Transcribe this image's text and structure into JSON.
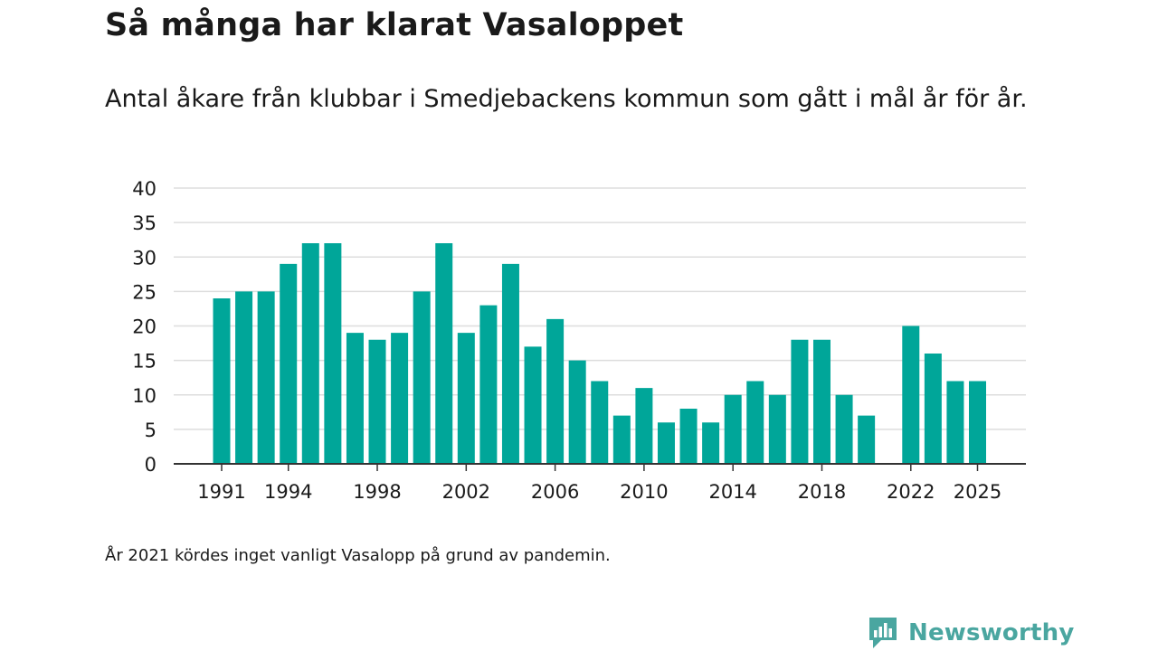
{
  "title": "Så många har klarat Vasaloppet",
  "subtitle": "Antal åkare från klubbar i Smedjebackens kommun som gått i mål år för år.",
  "note": "År 2021 kördes inget vanligt Vasalopp på grund av pandemin.",
  "brand": {
    "name": "Newsworthy",
    "color": "#4aa6a0"
  },
  "colors": {
    "bar": "#00a699",
    "grid": "#dddddd",
    "axis": "#333333"
  },
  "chart_data": {
    "type": "bar",
    "title": "Så många har klarat Vasaloppet",
    "xlabel": "",
    "ylabel": "",
    "ylim": [
      0,
      40
    ],
    "yticks": [
      0,
      5,
      10,
      15,
      20,
      25,
      30,
      35,
      40
    ],
    "xlim": [
      1991,
      2025
    ],
    "xticks": [
      "1991",
      "1994",
      "1998",
      "2002",
      "2006",
      "2010",
      "2014",
      "2018",
      "2022",
      "2025"
    ],
    "grid": true,
    "categories": [
      1991,
      1992,
      1993,
      1994,
      1995,
      1996,
      1997,
      1998,
      1999,
      2000,
      2001,
      2002,
      2003,
      2004,
      2005,
      2006,
      2007,
      2008,
      2009,
      2010,
      2011,
      2012,
      2013,
      2014,
      2015,
      2016,
      2017,
      2018,
      2019,
      2020,
      2022,
      2023,
      2024,
      2025
    ],
    "values": [
      24,
      25,
      25,
      29,
      32,
      32,
      19,
      18,
      19,
      25,
      32,
      19,
      23,
      29,
      17,
      21,
      15,
      12,
      7,
      11,
      6,
      8,
      6,
      10,
      12,
      10,
      18,
      18,
      10,
      7,
      20,
      16,
      12,
      12
    ]
  }
}
